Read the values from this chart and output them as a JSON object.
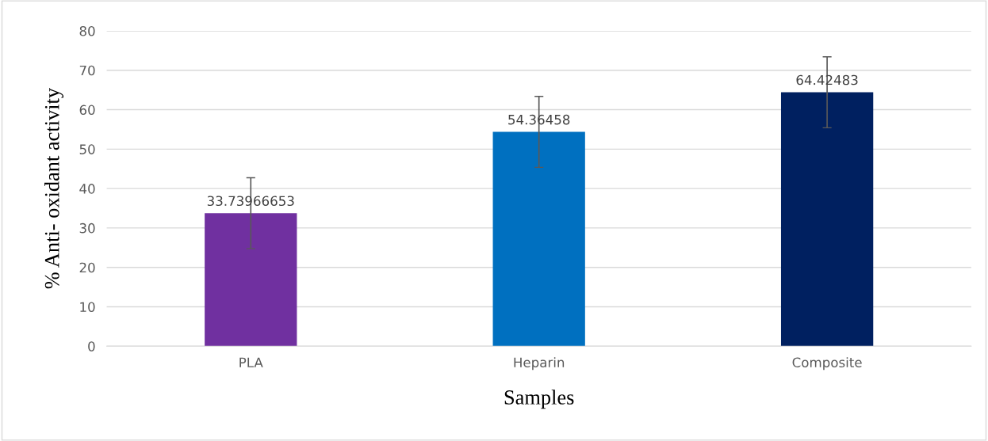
{
  "chart_data": {
    "type": "bar",
    "xlabel": "Samples",
    "ylabel": "% Anti- oxidant activity",
    "categories": [
      "PLA",
      "Heparin",
      "Composite"
    ],
    "values": [
      33.73966653,
      54.36458,
      64.42483
    ],
    "colors": [
      "#7030a0",
      "#0070c0",
      "#002060"
    ],
    "errors": [
      9,
      9,
      9
    ],
    "ylim": [
      0,
      80
    ],
    "yticks": [
      0,
      10,
      20,
      30,
      40,
      50,
      60,
      70,
      80
    ],
    "grid": "y",
    "data_labels": true
  }
}
